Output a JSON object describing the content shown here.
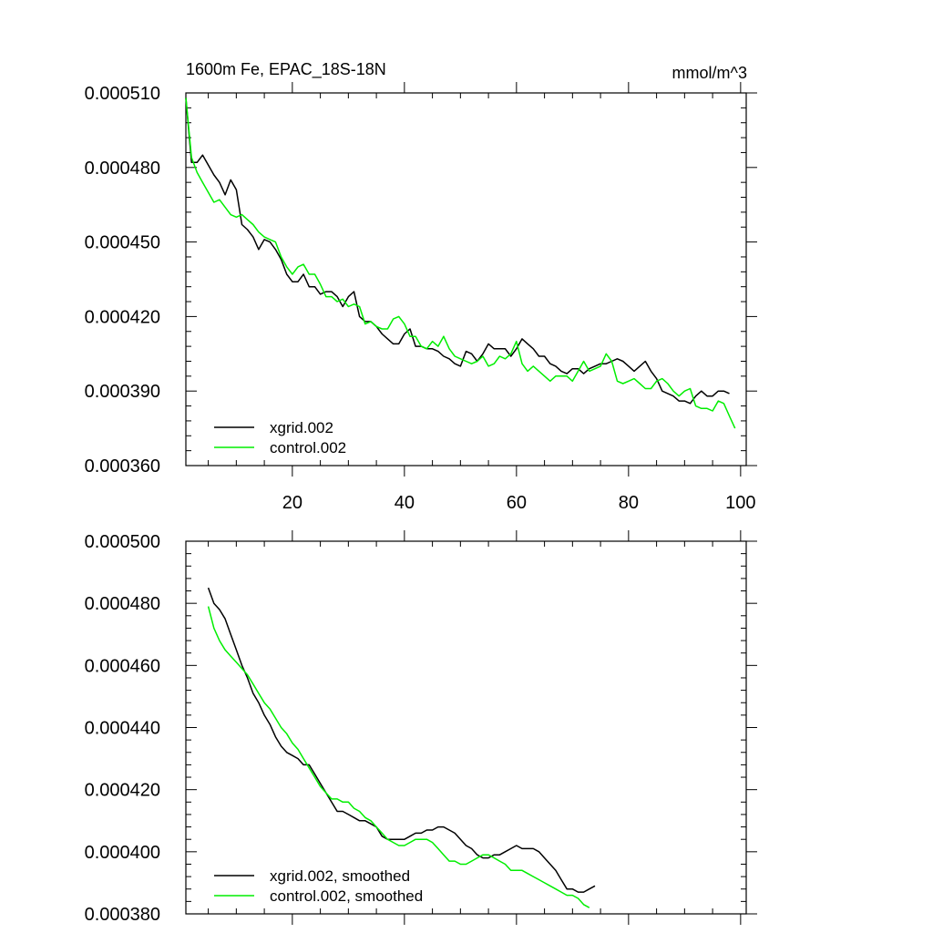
{
  "chart_data": [
    {
      "type": "line",
      "title": "1600m Fe, EPAC_18S-18N",
      "units": "mmol/m^3",
      "xlabel": "",
      "ylabel": "",
      "xlim": [
        1,
        101
      ],
      "ylim": [
        0.00036,
        0.00051
      ],
      "x_ticks": [
        20,
        40,
        60,
        80,
        100
      ],
      "x_tick_labels": [
        "20",
        "40",
        "60",
        "80",
        "100"
      ],
      "y_ticks": [
        0.00036,
        0.00039,
        0.00042,
        0.00045,
        0.00048,
        0.00051
      ],
      "y_tick_labels": [
        "0.000360",
        "0.000390",
        "0.000420",
        "0.000450",
        "0.000480",
        "0.000510"
      ],
      "legend_position": "bottom-left",
      "x_start": 1,
      "series": [
        {
          "name": "xgrid.002",
          "color": "#000000",
          "values": [
            0.000508,
            0.000482,
            0.000482,
            0.000485,
            0.000481,
            0.000477,
            0.000474,
            0.000469,
            0.000475,
            0.000471,
            0.000457,
            0.000455,
            0.000452,
            0.000447,
            0.000451,
            0.00045,
            0.000447,
            0.000443,
            0.000437,
            0.000434,
            0.000434,
            0.000437,
            0.000432,
            0.000432,
            0.000429,
            0.00043,
            0.00043,
            0.000428,
            0.000424,
            0.000428,
            0.00043,
            0.00042,
            0.000418,
            0.000418,
            0.000416,
            0.000413,
            0.000411,
            0.000409,
            0.000409,
            0.000413,
            0.000415,
            0.000408,
            0.000408,
            0.000407,
            0.000407,
            0.000406,
            0.000404,
            0.000403,
            0.000401,
            0.0004,
            0.000406,
            0.000405,
            0.000402,
            0.000405,
            0.000409,
            0.000407,
            0.000407,
            0.000407,
            0.000404,
            0.000407,
            0.000411,
            0.000409,
            0.000407,
            0.000404,
            0.000404,
            0.000401,
            0.0004,
            0.000398,
            0.000397,
            0.000399,
            0.000399,
            0.000397,
            0.000399,
            0.0004,
            0.000401,
            0.000401,
            0.000402,
            0.000403,
            0.000402,
            0.0004,
            0.000398,
            0.0004,
            0.000402,
            0.000398,
            0.000395,
            0.00039,
            0.000389,
            0.000388,
            0.000386,
            0.000386,
            0.000385,
            0.000388,
            0.00039,
            0.000388,
            0.000388,
            0.00039,
            0.00039,
            0.000389
          ]
        },
        {
          "name": "control.002",
          "color": "#00ee00",
          "values": [
            0.000508,
            0.000484,
            0.000478,
            0.000474,
            0.00047,
            0.000466,
            0.000467,
            0.000464,
            0.000461,
            0.00046,
            0.000461,
            0.000459,
            0.000457,
            0.000454,
            0.000452,
            0.000451,
            0.00045,
            0.000444,
            0.00044,
            0.000437,
            0.00044,
            0.000441,
            0.000437,
            0.000437,
            0.000433,
            0.000428,
            0.000428,
            0.000426,
            0.000427,
            0.000424,
            0.000425,
            0.000424,
            0.000417,
            0.000418,
            0.000416,
            0.000415,
            0.000415,
            0.000419,
            0.00042,
            0.000417,
            0.000412,
            0.000412,
            0.000408,
            0.000407,
            0.00041,
            0.000408,
            0.000412,
            0.000407,
            0.000404,
            0.000403,
            0.000402,
            0.000401,
            0.000402,
            0.000404,
            0.0004,
            0.000401,
            0.000404,
            0.000403,
            0.000405,
            0.00041,
            0.000401,
            0.000398,
            0.0004,
            0.000398,
            0.000396,
            0.000394,
            0.000396,
            0.000396,
            0.000396,
            0.000394,
            0.000398,
            0.000402,
            0.000398,
            0.000399,
            0.0004,
            0.000405,
            0.000402,
            0.000394,
            0.000393,
            0.000394,
            0.000395,
            0.000393,
            0.000391,
            0.000391,
            0.000394,
            0.000395,
            0.000393,
            0.00039,
            0.000388,
            0.00039,
            0.000391,
            0.000384,
            0.000383,
            0.000383,
            0.000382,
            0.000386,
            0.000385,
            0.00038,
            0.000375
          ]
        }
      ]
    },
    {
      "type": "line",
      "title": "",
      "xlabel": "",
      "ylabel": "",
      "xlim": [
        1,
        101
      ],
      "ylim": [
        0.00038,
        0.0005
      ],
      "x_ticks": [
        20,
        40,
        60,
        80,
        100
      ],
      "x_tick_labels": [],
      "y_ticks": [
        0.00038,
        0.0004,
        0.00042,
        0.00044,
        0.00046,
        0.00048,
        0.0005
      ],
      "y_tick_labels": [
        "0.000380",
        "0.000400",
        "0.000420",
        "0.000440",
        "0.000460",
        "0.000480",
        "0.000500"
      ],
      "legend_position": "bottom-left",
      "x_start": 5,
      "series": [
        {
          "name": "xgrid.002, smoothed",
          "color": "#000000",
          "values": [
            0.000485,
            0.00048,
            0.000478,
            0.000475,
            0.00047,
            0.000465,
            0.00046,
            0.000456,
            0.000451,
            0.000448,
            0.000444,
            0.000441,
            0.000437,
            0.000434,
            0.000432,
            0.000431,
            0.00043,
            0.000428,
            0.000428,
            0.000425,
            0.000422,
            0.000419,
            0.000416,
            0.000413,
            0.000413,
            0.000412,
            0.000411,
            0.00041,
            0.00041,
            0.000409,
            0.000408,
            0.000405,
            0.000404,
            0.000404,
            0.000404,
            0.000404,
            0.000405,
            0.000406,
            0.000406,
            0.000407,
            0.000407,
            0.000408,
            0.000408,
            0.000407,
            0.000406,
            0.000404,
            0.000402,
            0.000401,
            0.000399,
            0.000398,
            0.000398,
            0.000399,
            0.000399,
            0.0004,
            0.000401,
            0.000402,
            0.000401,
            0.000401,
            0.000401,
            0.0004,
            0.000398,
            0.000396,
            0.000394,
            0.000391,
            0.000388,
            0.000388,
            0.000387,
            0.000387,
            0.000388,
            0.000389
          ]
        },
        {
          "name": "control.002, smoothed",
          "color": "#00ee00",
          "values": [
            0.000479,
            0.000472,
            0.000468,
            0.000465,
            0.000463,
            0.000461,
            0.000459,
            0.000457,
            0.000454,
            0.000451,
            0.000448,
            0.000446,
            0.000443,
            0.00044,
            0.000438,
            0.000435,
            0.000433,
            0.00043,
            0.000427,
            0.000424,
            0.000421,
            0.000419,
            0.000417,
            0.000417,
            0.000416,
            0.000416,
            0.000414,
            0.000413,
            0.000411,
            0.00041,
            0.000408,
            0.000406,
            0.000404,
            0.000403,
            0.000402,
            0.000402,
            0.000403,
            0.000404,
            0.000404,
            0.000404,
            0.000403,
            0.000401,
            0.000399,
            0.000397,
            0.000397,
            0.000396,
            0.000396,
            0.000397,
            0.000398,
            0.000399,
            0.000399,
            0.000398,
            0.000397,
            0.000396,
            0.000394,
            0.000394,
            0.000394,
            0.000393,
            0.000392,
            0.000391,
            0.00039,
            0.000389,
            0.000388,
            0.000387,
            0.000386,
            0.000386,
            0.000385,
            0.000383,
            0.000382
          ]
        }
      ]
    }
  ]
}
